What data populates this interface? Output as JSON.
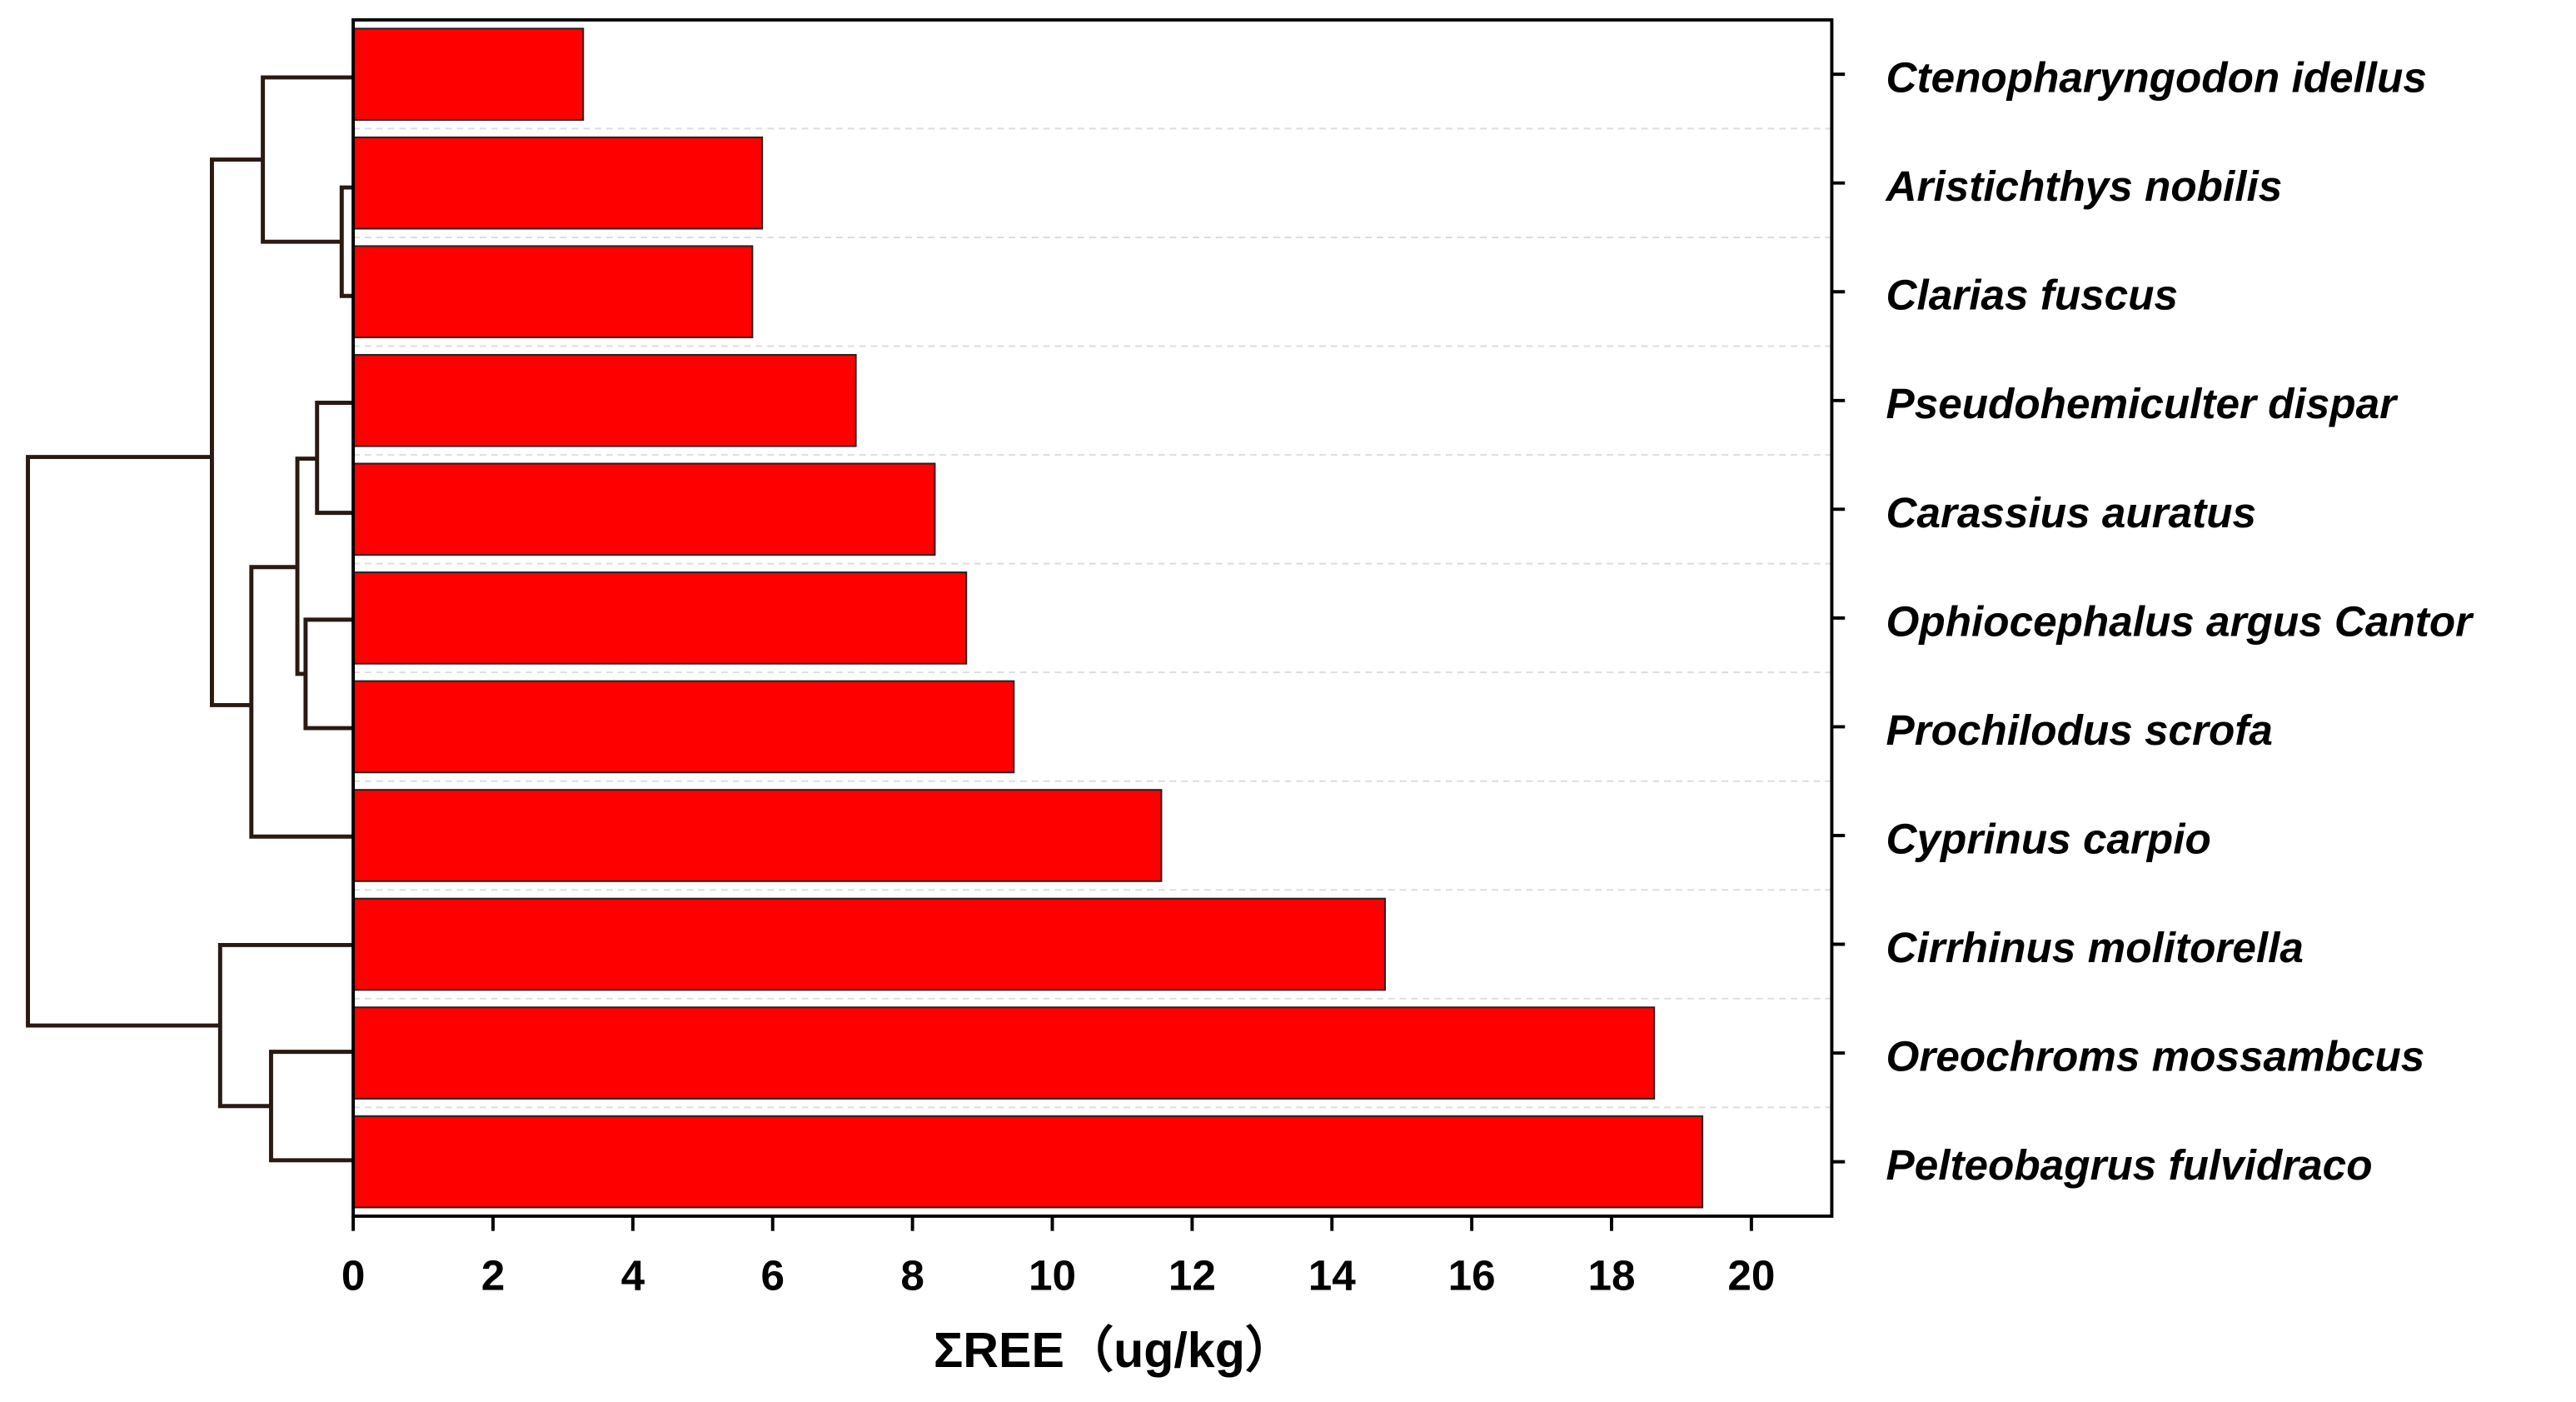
{
  "chart_data": {
    "type": "bar",
    "orientation": "horizontal",
    "x_label": "ΣREE（ug/kg）",
    "categories": [
      "Ctenopharyngodon idellus",
      "Aristichthys nobilis",
      "Clarias fuscus",
      "Pseudohemiculter dispar",
      "Carassius auratus",
      "Ophiocephalus argus Cantor",
      "Prochilodus scrofa",
      "Cyprinus carpio",
      "Cirrhinus molitorella",
      "Oreochroms mossambcus",
      "Pelteobagrus fulvidraco"
    ],
    "values": [
      3.29,
      5.85,
      5.71,
      7.19,
      8.32,
      8.77,
      9.45,
      11.56,
      14.76,
      18.61,
      19.3
    ],
    "color": "#ff0000",
    "xlim": [
      0,
      21.15
    ],
    "xticks": [
      0,
      2,
      4,
      6,
      8,
      10,
      12,
      14,
      16,
      18,
      20
    ]
  }
}
